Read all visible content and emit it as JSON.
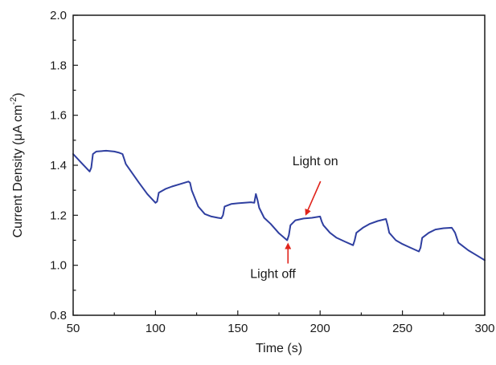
{
  "chart_data": {
    "type": "line",
    "xlabel": "Time (s)",
    "ylabel": {
      "prefix": "Current Density (",
      "mu": "μ",
      "unit": "A cm",
      "sup": "-2",
      "suffix": ")"
    },
    "xlim": [
      50,
      300
    ],
    "ylim": [
      0.8,
      2.0
    ],
    "x_ticks": [
      "50",
      "100",
      "150",
      "200",
      "250",
      "300"
    ],
    "y_ticks": [
      "0.8",
      "1.0",
      "1.2",
      "1.4",
      "1.6",
      "1.8",
      "2.0"
    ],
    "grid": false,
    "series": [
      {
        "color": "#2f3fa0",
        "x": [
          50,
          55,
          60,
          61,
          62,
          64,
          70,
          75,
          78,
          80,
          81,
          82,
          90,
          95,
          100,
          101,
          102,
          106,
          110,
          115,
          120,
          121,
          122,
          126,
          130,
          134,
          138,
          140,
          141,
          142,
          146,
          150,
          154,
          158,
          160,
          161,
          162,
          163,
          166,
          170,
          175,
          180,
          181,
          182,
          185,
          190,
          195,
          200,
          201,
          202,
          206,
          210,
          215,
          220,
          221,
          222,
          226,
          230,
          235,
          240,
          241,
          242,
          246,
          250,
          255,
          260,
          261,
          262,
          266,
          270,
          275,
          280,
          281,
          282,
          284,
          286,
          290,
          295,
          300
        ],
        "y": [
          1.445,
          1.41,
          1.375,
          1.39,
          1.445,
          1.455,
          1.458,
          1.455,
          1.45,
          1.445,
          1.425,
          1.405,
          1.33,
          1.285,
          1.25,
          1.255,
          1.29,
          1.305,
          1.315,
          1.325,
          1.335,
          1.33,
          1.3,
          1.235,
          1.205,
          1.195,
          1.19,
          1.188,
          1.2,
          1.235,
          1.245,
          1.248,
          1.25,
          1.252,
          1.25,
          1.285,
          1.26,
          1.23,
          1.19,
          1.165,
          1.128,
          1.1,
          1.12,
          1.16,
          1.18,
          1.187,
          1.19,
          1.195,
          1.175,
          1.16,
          1.13,
          1.11,
          1.095,
          1.08,
          1.1,
          1.13,
          1.15,
          1.165,
          1.177,
          1.185,
          1.16,
          1.13,
          1.1,
          1.085,
          1.07,
          1.055,
          1.07,
          1.11,
          1.13,
          1.143,
          1.148,
          1.15,
          1.14,
          1.13,
          1.09,
          1.08,
          1.06,
          1.04,
          1.02
        ]
      }
    ],
    "annotations": [
      {
        "text": "Light on",
        "x": 190,
        "y": 1.185,
        "color": "#e0241b"
      },
      {
        "text": "Light off",
        "x": 180,
        "y": 1.1,
        "color": "#e0241b"
      }
    ]
  }
}
